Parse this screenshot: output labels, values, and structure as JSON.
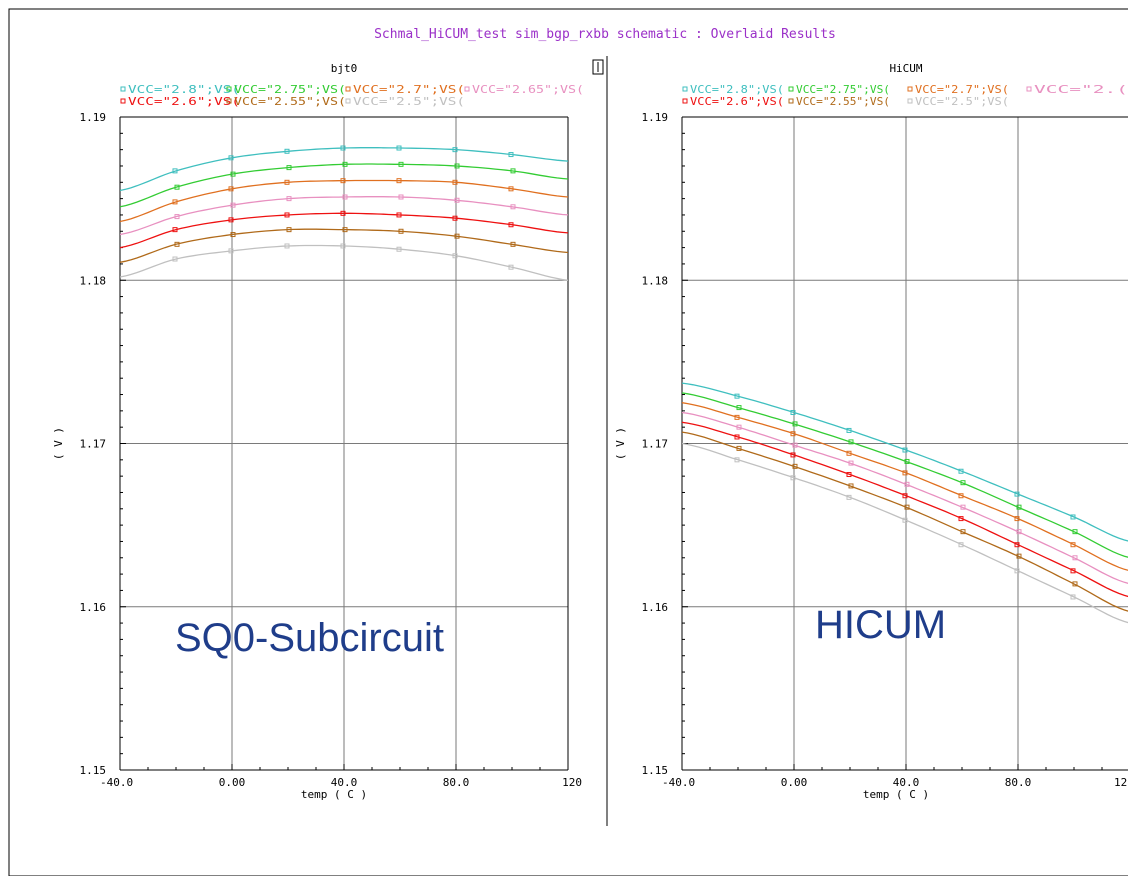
{
  "window_title": "Schmal_HiCUM_test sim_bgp_rxbb schematic : Overlaid Results",
  "colors": {
    "title": "#9b30c8",
    "frame": "#000000",
    "grid": "#7a7a7a",
    "overlay_text": "#1f3d8a",
    "series": [
      "#3fbfbf",
      "#33cc33",
      "#e07020",
      "#e890c0",
      "#ee1111",
      "#b06a1a",
      "#c0c0c0"
    ]
  },
  "overlay_labels": {
    "left": "SQ0-Subcircuit",
    "right": "HICUM"
  },
  "chart_data": [
    {
      "type": "line",
      "title": "bjt0",
      "xlabel": "temp ( C )",
      "ylabel": "( V )",
      "xlim": [
        -40,
        120
      ],
      "ylim": [
        1.15,
        1.19
      ],
      "x_ticks": [
        "-40.0",
        "0.00",
        "40.0",
        "80.0",
        "120"
      ],
      "y_ticks": [
        "1.15",
        "1.16",
        "1.17",
        "1.18",
        "1.19"
      ],
      "x": [
        -40,
        -20,
        0,
        20,
        40,
        60,
        80,
        100,
        120
      ],
      "legend_rows": [
        [
          "VCC=\"2.8\";VS(",
          "VCC=\"2.75\";VS(",
          "VCC=\"2.7\";VS(",
          "VCC=\"2.65\";VS("
        ],
        [
          "VCC=\"2.6\";VS(",
          "VCC=\"2.55\";VS(",
          "VCC=\"2.5\";VS("
        ]
      ],
      "series": [
        {
          "name": "VCC=\"2.8\";VS(",
          "values": [
            1.1855,
            1.1867,
            1.1875,
            1.1879,
            1.1881,
            1.1881,
            1.188,
            1.1877,
            1.1873
          ]
        },
        {
          "name": "VCC=\"2.75\";VS(",
          "values": [
            1.1845,
            1.1857,
            1.1865,
            1.1869,
            1.1871,
            1.1871,
            1.187,
            1.1867,
            1.1862
          ]
        },
        {
          "name": "VCC=\"2.7\";VS(",
          "values": [
            1.1836,
            1.1848,
            1.1856,
            1.186,
            1.1861,
            1.1861,
            1.186,
            1.1856,
            1.1851
          ]
        },
        {
          "name": "VCC=\"2.65\";VS(",
          "values": [
            1.1828,
            1.1839,
            1.1846,
            1.185,
            1.1851,
            1.1851,
            1.1849,
            1.1845,
            1.184
          ]
        },
        {
          "name": "VCC=\"2.6\";VS(",
          "values": [
            1.182,
            1.1831,
            1.1837,
            1.184,
            1.1841,
            1.184,
            1.1838,
            1.1834,
            1.1829
          ]
        },
        {
          "name": "VCC=\"2.55\";VS(",
          "values": [
            1.1811,
            1.1822,
            1.1828,
            1.1831,
            1.1831,
            1.183,
            1.1827,
            1.1822,
            1.1817
          ]
        },
        {
          "name": "VCC=\"2.5\";VS(",
          "values": [
            1.1802,
            1.1813,
            1.1818,
            1.1821,
            1.1821,
            1.1819,
            1.1815,
            1.1808,
            1.18
          ]
        }
      ]
    },
    {
      "type": "line",
      "title": "HiCUM",
      "xlabel": "temp ( C )",
      "ylabel": "( V )",
      "xlim": [
        -40,
        120
      ],
      "ylim": [
        1.15,
        1.19
      ],
      "x_ticks": [
        "-40.0",
        "0.00",
        "40.0",
        "80.0",
        "12"
      ],
      "y_ticks": [
        "1.15",
        "1.16",
        "1.17",
        "1.18",
        "1.19"
      ],
      "x": [
        -40,
        -20,
        0,
        20,
        40,
        60,
        80,
        100,
        120
      ],
      "legend_rows": [
        [
          "VCC=\"2.8\";VS(",
          "VCC=\"2.75\";VS(",
          "VCC=\"2.7\";VS(",
          "VCC=\"2.("
        ],
        [
          "VCC=\"2.6\";VS(",
          "VCC=\"2.55\";VS(",
          "VCC=\"2.5\";VS("
        ]
      ],
      "series": [
        {
          "name": "VCC=\"2.8\";VS(",
          "values": [
            1.1737,
            1.1729,
            1.1719,
            1.1708,
            1.1696,
            1.1683,
            1.1669,
            1.1655,
            1.164
          ]
        },
        {
          "name": "VCC=\"2.75\";VS(",
          "values": [
            1.1731,
            1.1722,
            1.1712,
            1.1701,
            1.1689,
            1.1676,
            1.1661,
            1.1646,
            1.163
          ]
        },
        {
          "name": "VCC=\"2.7\";VS(",
          "values": [
            1.1725,
            1.1716,
            1.1706,
            1.1694,
            1.1682,
            1.1668,
            1.1654,
            1.1638,
            1.1622
          ]
        },
        {
          "name": "VCC=\"2.65\";VS(",
          "values": [
            1.1719,
            1.171,
            1.1699,
            1.1688,
            1.1675,
            1.1661,
            1.1646,
            1.163,
            1.1614
          ]
        },
        {
          "name": "VCC=\"2.6\";VS(",
          "values": [
            1.1713,
            1.1704,
            1.1693,
            1.1681,
            1.1668,
            1.1654,
            1.1638,
            1.1622,
            1.1606
          ]
        },
        {
          "name": "VCC=\"2.55\";VS(",
          "values": [
            1.1707,
            1.1697,
            1.1686,
            1.1674,
            1.1661,
            1.1646,
            1.1631,
            1.1614,
            1.1597
          ]
        },
        {
          "name": "VCC=\"2.5\";VS(",
          "values": [
            1.17,
            1.169,
            1.1679,
            1.1667,
            1.1653,
            1.1638,
            1.1622,
            1.1606,
            1.159
          ]
        }
      ]
    }
  ]
}
